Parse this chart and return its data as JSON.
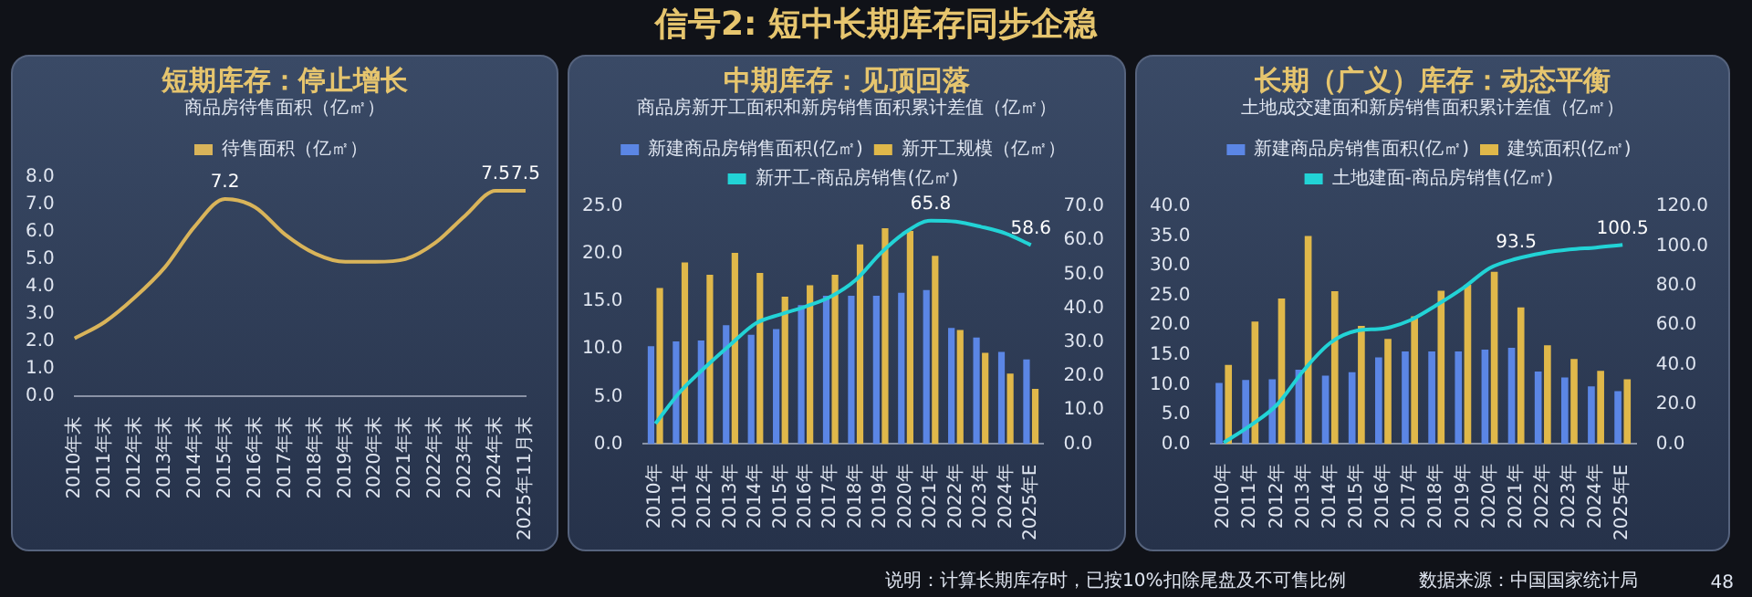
{
  "chart_data": [
    {
      "type": "other",
      "title": "信号2: 短中长期库存同步企稳",
      "annotations": [
        "说明：计算长期库存时，已按10%扣除尾盘及不可售比例",
        "数据来源：中国国家统计局",
        "48"
      ]
    },
    {
      "type": "line",
      "title": "短期库存：停止增长",
      "subtitle": "商品房待售面积（亿㎡）",
      "categories": [
        "2010年末",
        "2011年末",
        "2012年末",
        "2013年末",
        "2014年末",
        "2015年末",
        "2016年末",
        "2017年末",
        "2018年末",
        "2019年末",
        "2020年末",
        "2021年末",
        "2022年末",
        "2023年末",
        "2024年末",
        "2025年11月末"
      ],
      "series": [
        {
          "name": "待售面积（亿㎡）",
          "color": "#d9b45a",
          "values": [
            2.1,
            2.7,
            3.6,
            4.7,
            6.2,
            7.2,
            6.9,
            5.9,
            5.2,
            4.9,
            4.9,
            5.0,
            5.6,
            6.6,
            7.5,
            7.5
          ],
          "value_labels": [
            null,
            null,
            null,
            null,
            null,
            "7.2",
            null,
            null,
            null,
            null,
            null,
            null,
            null,
            null,
            "7.5",
            "7.5"
          ]
        }
      ],
      "ylim": [
        0,
        8
      ],
      "yticks": [
        {
          "value": 0,
          "label": "0.0"
        },
        {
          "value": 1,
          "label": "1.0"
        },
        {
          "value": 2,
          "label": "2.0"
        },
        {
          "value": 3,
          "label": "3.0"
        },
        {
          "value": 4,
          "label": "4.0"
        },
        {
          "value": 5,
          "label": "5.0"
        },
        {
          "value": 6,
          "label": "6.0"
        },
        {
          "value": 7,
          "label": "7.0"
        },
        {
          "value": 8,
          "label": "8.0"
        }
      ],
      "legend": "top",
      "marker": "none"
    },
    {
      "type": "bar",
      "title": "中期库存：见顶回落",
      "subtitle": "商品房新开工面积和新房销售面积累计差值（亿㎡）",
      "categories": [
        "2010年",
        "2011年",
        "2012年",
        "2013年",
        "2014年",
        "2015年",
        "2016年",
        "2017年",
        "2018年",
        "2019年",
        "2020年",
        "2021年",
        "2022年",
        "2023年",
        "2024年",
        "2025年E"
      ],
      "series": [
        {
          "name": "新建商品房销售面积(亿㎡)",
          "color": "#5b86e5",
          "values": [
            10.3,
            10.8,
            10.9,
            12.5,
            11.5,
            12.1,
            14.6,
            15.6,
            15.6,
            15.6,
            15.9,
            16.2,
            12.2,
            11.2,
            9.7,
            8.9
          ]
        },
        {
          "name": "新开工规模（亿㎡）",
          "color": "#e0b84a",
          "values": [
            16.4,
            19.1,
            17.8,
            20.1,
            18.0,
            15.5,
            16.7,
            17.8,
            21.0,
            22.7,
            22.4,
            19.8,
            12.0,
            9.6,
            7.4,
            5.8
          ]
        },
        {
          "name": "新开工-商品房销售(亿㎡)",
          "type": "line",
          "axis": "y2",
          "color": "#22d3d6",
          "values": [
            6.0,
            15.5,
            22.7,
            29.3,
            35.5,
            38.2,
            40.5,
            43.4,
            48.3,
            56.2,
            62.4,
            65.8,
            65.5,
            64.0,
            62.0,
            58.6
          ],
          "value_labels": [
            null,
            null,
            null,
            null,
            null,
            null,
            null,
            null,
            null,
            null,
            null,
            "65.8",
            null,
            null,
            null,
            "58.6"
          ]
        }
      ],
      "ylim": [
        0,
        25
      ],
      "yticks": [
        {
          "value": 0,
          "label": "0.0"
        },
        {
          "value": 5,
          "label": "5.0"
        },
        {
          "value": 10,
          "label": "10.0"
        },
        {
          "value": 15,
          "label": "15.0"
        },
        {
          "value": 20,
          "label": "20.0"
        },
        {
          "value": 25,
          "label": "25.0"
        }
      ],
      "y2lim": [
        0,
        70
      ],
      "y2ticks": [
        {
          "value": 0,
          "label": "0.0"
        },
        {
          "value": 10,
          "label": "10.0"
        },
        {
          "value": 20,
          "label": "20.0"
        },
        {
          "value": 30,
          "label": "30.0"
        },
        {
          "value": 40,
          "label": "40.0"
        },
        {
          "value": 50,
          "label": "50.0"
        },
        {
          "value": 60,
          "label": "60.0"
        },
        {
          "value": 70,
          "label": "70.0"
        }
      ],
      "legend": "top",
      "marker": "none"
    },
    {
      "type": "bar",
      "title": "长期（广义）库存：动态平衡",
      "subtitle": "土地成交建面和新房销售面积累计差值（亿㎡）",
      "categories": [
        "2010年",
        "2011年",
        "2012年",
        "2013年",
        "2014年",
        "2015年",
        "2016年",
        "2017年",
        "2018年",
        "2019年",
        "2020年",
        "2021年",
        "2022年",
        "2023年",
        "2024年",
        "2025年E"
      ],
      "series": [
        {
          "name": "新建商品房销售面积(亿㎡)",
          "color": "#5b86e5",
          "values": [
            10.3,
            10.8,
            10.9,
            12.5,
            11.5,
            12.1,
            14.6,
            15.6,
            15.6,
            15.6,
            15.9,
            16.2,
            12.2,
            11.2,
            9.7,
            8.9
          ]
        },
        {
          "name": "建筑面积(亿㎡)",
          "color": "#e0b84a",
          "values": [
            13.3,
            20.6,
            24.5,
            35.0,
            25.7,
            19.9,
            17.7,
            21.5,
            25.8,
            26.8,
            29.0,
            23.0,
            16.6,
            14.3,
            12.3,
            10.9
          ]
        },
        {
          "name": "土地建面-商品房销售(亿㎡)",
          "type": "line",
          "axis": "y2",
          "color": "#22d3d6",
          "values": [
            0.7,
            9.4,
            19.8,
            37.1,
            51.0,
            57.2,
            58.3,
            62.4,
            70.1,
            78.7,
            88.8,
            93.5,
            96.4,
            98.2,
            99.2,
            100.5
          ],
          "value_labels": [
            null,
            null,
            null,
            null,
            null,
            null,
            null,
            null,
            null,
            null,
            null,
            "93.5",
            null,
            null,
            null,
            "100.5"
          ]
        }
      ],
      "ylim": [
        0,
        40
      ],
      "yticks": [
        {
          "value": 0,
          "label": "0.0"
        },
        {
          "value": 5,
          "label": "5.0"
        },
        {
          "value": 10,
          "label": "10.0"
        },
        {
          "value": 15,
          "label": "15.0"
        },
        {
          "value": 20,
          "label": "20.0"
        },
        {
          "value": 25,
          "label": "25.0"
        },
        {
          "value": 30,
          "label": "30.0"
        },
        {
          "value": 35,
          "label": "35.0"
        },
        {
          "value": 40,
          "label": "40.0"
        }
      ],
      "y2lim": [
        0,
        120
      ],
      "y2ticks": [
        {
          "value": 0,
          "label": "0.0"
        },
        {
          "value": 20,
          "label": "20.0"
        },
        {
          "value": 40,
          "label": "40.0"
        },
        {
          "value": 60,
          "label": "60.0"
        },
        {
          "value": 80,
          "label": "80.0"
        },
        {
          "value": 100,
          "label": "100.0"
        },
        {
          "value": 120,
          "label": "120.0"
        }
      ],
      "legend": "top",
      "marker": "none"
    }
  ]
}
